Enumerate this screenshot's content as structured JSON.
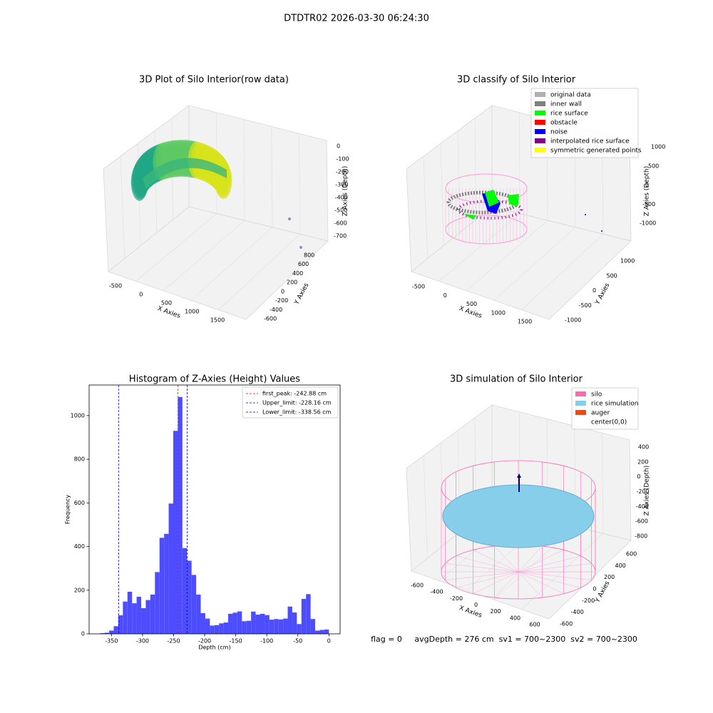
{
  "title": "DTDTR02 2026-03-30 06:24:30",
  "footer": "flag = 0     avgDepth = 276 cm  sv1 = 700~2300  sv2 = 700~2300",
  "chart_data": [
    {
      "type": "scatter3d",
      "title": "3D Plot of Silo Interior(row data)",
      "xlabel": "X Axies",
      "ylabel": "Y Axies",
      "zlabel": "Z Axies (Depth)",
      "xticks": [
        -500,
        0,
        500,
        1000,
        1500
      ],
      "yticks": [
        800,
        600,
        400,
        200,
        0,
        -200,
        -400,
        -600
      ],
      "zticks": [
        0,
        -100,
        -200,
        -300,
        -400,
        -500,
        -600,
        -700
      ]
    },
    {
      "type": "scatter3d",
      "title": "3D classify of Silo Interior",
      "xlabel": "X Axies",
      "ylabel": "Y Axies",
      "zlabel": "Z Axies (Depth)",
      "xticks": [
        -500,
        0,
        500,
        1000,
        1500
      ],
      "yticks": [
        1000,
        500,
        0,
        -500,
        -1000
      ],
      "zticks": [
        1000,
        500,
        0,
        -500,
        -1000
      ],
      "legend": [
        {
          "name": "original data",
          "color": "#b0b0b0"
        },
        {
          "name": "inner wall",
          "color": "#808080"
        },
        {
          "name": "rice surface",
          "color": "#00ff00"
        },
        {
          "name": "obstacle",
          "color": "#ff0000"
        },
        {
          "name": "noise",
          "color": "#0000ff"
        },
        {
          "name": "interpolated rice surface",
          "color": "#800080"
        },
        {
          "name": "symmetric generated points",
          "color": "#ffff00"
        }
      ]
    },
    {
      "type": "histogram",
      "title": "Histogram of Z-Axies (Height) Values",
      "xlabel": "Depth (cm)",
      "ylabel": "Frequency",
      "color": "#4d4dff",
      "bins": [
        -368.5,
        -361.13,
        -353.76,
        -346.39,
        -339.02,
        -331.65,
        -324.28,
        -316.91,
        -309.54,
        -302.17,
        -294.8,
        -287.43,
        -280.06,
        -272.69,
        -265.32,
        -257.95,
        -250.58,
        -243.21,
        -235.84,
        -228.47,
        -221.1,
        -213.73,
        -206.36,
        -198.99,
        -191.62,
        -184.25,
        -176.88,
        -169.51,
        -162.14,
        -154.77,
        -147.4,
        -140.03,
        -132.66,
        -125.29,
        -117.92,
        -110.55,
        -103.18,
        -95.81,
        -88.44,
        -81.07,
        -73.7,
        -66.33,
        -58.96,
        -51.59,
        -44.22,
        -36.85,
        -29.48,
        -22.11,
        -14.74,
        -7.37,
        0
      ],
      "counts": [
        3,
        5,
        15,
        35,
        85,
        148,
        193,
        140,
        170,
        118,
        155,
        180,
        283,
        440,
        458,
        597,
        930,
        1085,
        393,
        335,
        270,
        180,
        95,
        70,
        38,
        40,
        48,
        52,
        92,
        97,
        103,
        58,
        60,
        102,
        88,
        92,
        86,
        65,
        68,
        66,
        70,
        125,
        98,
        45,
        160,
        182,
        68,
        15,
        18,
        20
      ],
      "xlim": [
        -386,
        18
      ],
      "ylim": [
        0,
        1140
      ],
      "xticks": [
        -350,
        -300,
        -250,
        -200,
        -150,
        -100,
        -50,
        0
      ],
      "yticks": [
        0,
        200,
        400,
        600,
        800,
        1000
      ],
      "lines": [
        {
          "name": "first_peak: -242.88 cm",
          "value": -242.88,
          "color": "#ff0000"
        },
        {
          "name": "Upper_limit: -228.16 cm",
          "value": -228.16,
          "color": "#0000cc"
        },
        {
          "name": "Lower_limit: -338.56 cm",
          "value": -338.56,
          "color": "#0000cc"
        }
      ],
      "legend": "upper right"
    },
    {
      "type": "surface3d",
      "title": "3D simulation of Silo Interior",
      "xlabel": "X Axies",
      "ylabel": "Y Axies",
      "zlabel": "Z Axies (Depth)",
      "xticks": [
        -600,
        -400,
        -200,
        0,
        200,
        400,
        600
      ],
      "yticks": [
        600,
        400,
        200,
        0,
        -200,
        -400,
        -600
      ],
      "zticks": [
        400,
        200,
        0,
        -200,
        -400,
        -600,
        -800
      ],
      "legend": [
        {
          "name": "silo",
          "color": "#ff69b4"
        },
        {
          "name": "rice simulation",
          "color": "#87ceeb"
        },
        {
          "name": "auger",
          "color": "#ff4500"
        },
        {
          "name": "center(0,0)",
          "color": "#ffffff"
        }
      ]
    }
  ]
}
